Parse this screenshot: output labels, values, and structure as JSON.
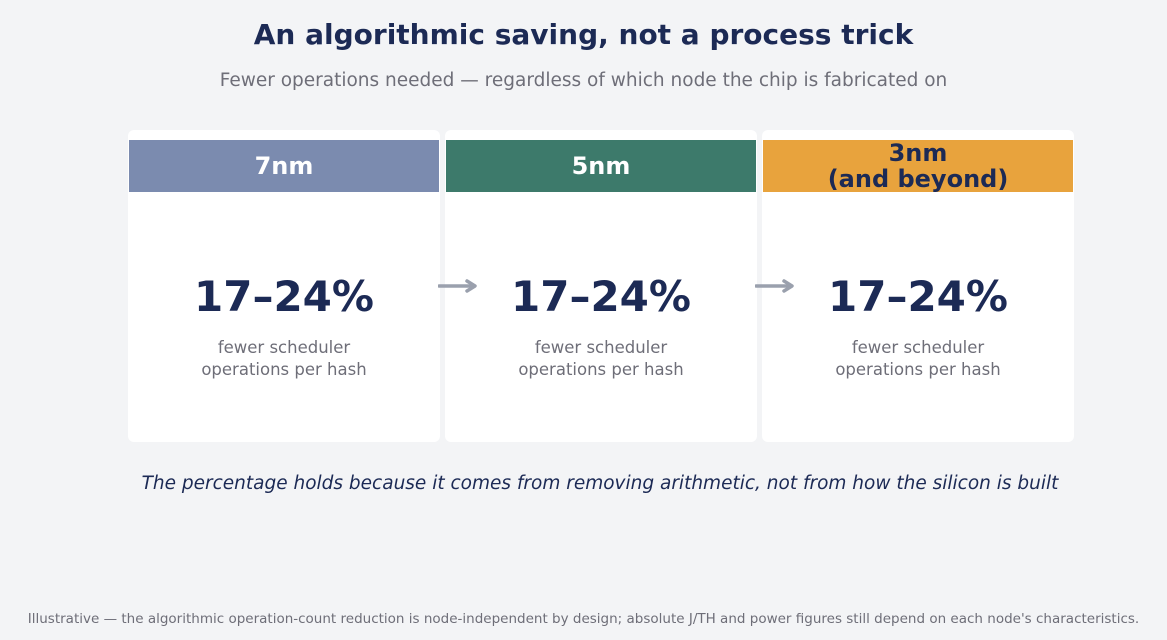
{
  "title": "An algorithmic saving, not a process trick",
  "subtitle": "Fewer operations needed — regardless of which node the chip is fabricated on",
  "nodes": [
    {
      "label": "7nm",
      "value": "17–24%",
      "description": "fewer scheduler\noperations per hash",
      "color": "#7b8baf",
      "label_color": "#ffffff"
    },
    {
      "label": "5nm",
      "value": "17–24%",
      "description": "fewer scheduler\noperations per hash",
      "color": "#3d7a6b",
      "label_color": "#ffffff"
    },
    {
      "label": "3nm\n(and beyond)",
      "value": "17–24%",
      "description": "fewer scheduler\noperations per hash",
      "color": "#e8a33d",
      "label_color": "#1c2a55"
    }
  ],
  "footnote": "The percentage holds because it comes from removing arithmetic, not from how the silicon is built",
  "caption": "Illustrative — the algorithmic operation-count reduction is node-independent by design; absolute J/TH and power figures still depend on each node's characteristics."
}
